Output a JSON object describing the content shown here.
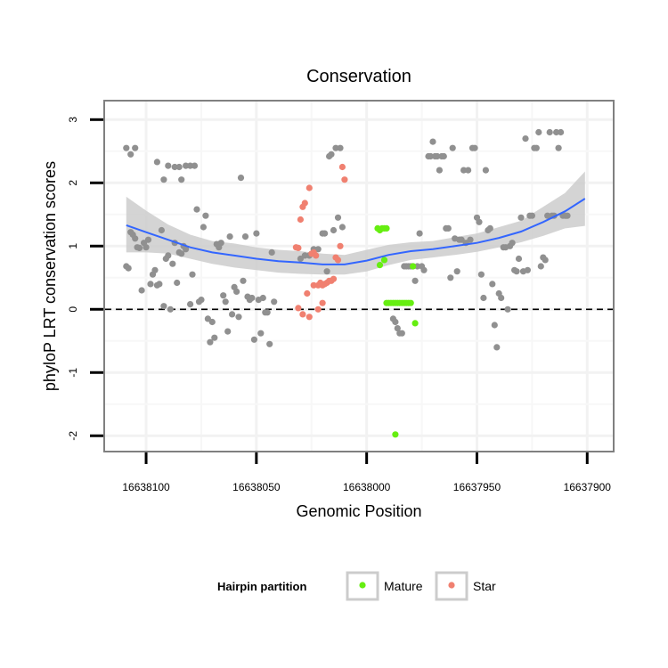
{
  "chart_data": {
    "type": "scatter",
    "title": "Conservation",
    "xlabel": "Genomic Position",
    "ylabel": "phyloP LRT conservation scores",
    "x_reversed": true,
    "xlim": [
      16638119,
      16637888
    ],
    "ylim": [
      -2.25,
      3.3
    ],
    "xticks": [
      16638100,
      16638050,
      16638000,
      16637950,
      16637900
    ],
    "xtick_labels": [
      "16638100",
      "16638050",
      "16638000",
      "16637950",
      "16637900"
    ],
    "yticks": [
      -2,
      -1,
      0,
      1,
      2,
      3
    ],
    "ytick_labels": [
      "-2",
      "-1",
      "0",
      "1",
      "2",
      "3"
    ],
    "grid": true,
    "reference_line": {
      "y": 0,
      "style": "dashed"
    },
    "legend": {
      "title": "Hairpin partition",
      "position": "bottom",
      "entries": [
        {
          "label": "Mature",
          "color": "#66ee11"
        },
        {
          "label": "Star",
          "color": "#f08070"
        }
      ]
    },
    "colors": {
      "other": "#909090",
      "smooth": "#3366ff",
      "band": "#cccccc"
    },
    "series": [
      {
        "name": "",
        "role": "other",
        "points": [
          [
            16638109,
            2.55
          ],
          [
            16638107,
            2.45
          ],
          [
            16638105,
            2.55
          ],
          [
            16638095,
            2.33
          ],
          [
            16638092,
            2.05
          ],
          [
            16638090,
            2.27
          ],
          [
            16638087,
            2.25
          ],
          [
            16638085,
            2.25
          ],
          [
            16638084,
            2.05
          ],
          [
            16638082,
            2.27
          ],
          [
            16638080,
            2.27
          ],
          [
            16638078,
            2.27
          ],
          [
            16638109,
            0.68
          ],
          [
            16638108,
            0.65
          ],
          [
            16638107,
            1.22
          ],
          [
            16638106,
            1.18
          ],
          [
            16638105,
            1.12
          ],
          [
            16638104,
            0.98
          ],
          [
            16638103,
            0.97
          ],
          [
            16638102,
            0.3
          ],
          [
            16638101,
            1.05
          ],
          [
            16638100,
            0.98
          ],
          [
            16638099,
            1.1
          ],
          [
            16638098,
            0.4
          ],
          [
            16638097,
            0.55
          ],
          [
            16638096,
            0.62
          ],
          [
            16638095,
            0.38
          ],
          [
            16638094,
            0.4
          ],
          [
            16638093,
            1.25
          ],
          [
            16638092,
            0.05
          ],
          [
            16638091,
            0.8
          ],
          [
            16638090,
            0.85
          ],
          [
            16638089,
            0.0
          ],
          [
            16638088,
            0.72
          ],
          [
            16638087,
            1.05
          ],
          [
            16638086,
            0.42
          ],
          [
            16638085,
            0.9
          ],
          [
            16638084,
            0.88
          ],
          [
            16638083,
            1.0
          ],
          [
            16638082,
            0.95
          ],
          [
            16638080,
            0.08
          ],
          [
            16638079,
            0.55
          ],
          [
            16638077,
            1.58
          ],
          [
            16638076,
            0.12
          ],
          [
            16638075,
            0.15
          ],
          [
            16638074,
            1.3
          ],
          [
            16638073,
            1.48
          ],
          [
            16638072,
            -0.15
          ],
          [
            16638071,
            -0.52
          ],
          [
            16638070,
            -0.2
          ],
          [
            16638069,
            -0.45
          ],
          [
            16638068,
            1.03
          ],
          [
            16638067,
            0.98
          ],
          [
            16638066,
            1.05
          ],
          [
            16638065,
            0.22
          ],
          [
            16638064,
            0.12
          ],
          [
            16638063,
            -0.35
          ],
          [
            16638062,
            1.15
          ],
          [
            16638061,
            -0.08
          ],
          [
            16638060,
            0.35
          ],
          [
            16638059,
            0.28
          ],
          [
            16638058,
            -0.12
          ],
          [
            16638057,
            2.08
          ],
          [
            16638056,
            0.45
          ],
          [
            16638055,
            1.15
          ],
          [
            16638054,
            0.2
          ],
          [
            16638053,
            0.15
          ],
          [
            16638052,
            0.18
          ],
          [
            16638051,
            -0.48
          ],
          [
            16638050,
            1.2
          ],
          [
            16638049,
            0.15
          ],
          [
            16638048,
            -0.38
          ],
          [
            16638047,
            0.18
          ],
          [
            16638046,
            -0.05
          ],
          [
            16638045,
            -0.05
          ],
          [
            16638044,
            -0.55
          ],
          [
            16638043,
            0.9
          ],
          [
            16638042,
            0.12
          ],
          [
            16638030,
            0.8
          ],
          [
            16638028,
            0.85
          ],
          [
            16638026,
            0.85
          ],
          [
            16638024,
            0.95
          ],
          [
            16638022,
            0.95
          ],
          [
            16638020,
            1.2
          ],
          [
            16638019,
            1.2
          ],
          [
            16638018,
            0.6
          ],
          [
            16638017,
            2.42
          ],
          [
            16638016,
            2.45
          ],
          [
            16638015,
            1.25
          ],
          [
            16638014,
            2.55
          ],
          [
            16638013,
            1.45
          ],
          [
            16638012,
            2.55
          ],
          [
            16638011,
            1.3
          ],
          [
            16637988,
            -0.15
          ],
          [
            16637987,
            -0.2
          ],
          [
            16637986,
            -0.3
          ],
          [
            16637985,
            -0.38
          ],
          [
            16637984,
            -0.38
          ],
          [
            16637983,
            0.68
          ],
          [
            16637982,
            0.68
          ],
          [
            16637981,
            0.68
          ],
          [
            16637980,
            0.68
          ],
          [
            16637979,
            0.68
          ],
          [
            16637978,
            0.45
          ],
          [
            16637977,
            0.68
          ],
          [
            16637976,
            1.2
          ],
          [
            16637975,
            0.68
          ],
          [
            16637974,
            0.62
          ],
          [
            16637972,
            2.42
          ],
          [
            16637971,
            2.42
          ],
          [
            16637970,
            2.65
          ],
          [
            16637969,
            2.42
          ],
          [
            16637968,
            2.42
          ],
          [
            16637967,
            2.2
          ],
          [
            16637966,
            2.42
          ],
          [
            16637965,
            2.42
          ],
          [
            16637964,
            1.28
          ],
          [
            16637963,
            1.28
          ],
          [
            16637962,
            0.5
          ],
          [
            16637961,
            2.55
          ],
          [
            16637960,
            1.12
          ],
          [
            16637959,
            0.6
          ],
          [
            16637958,
            1.1
          ],
          [
            16637957,
            1.1
          ],
          [
            16637956,
            2.2
          ],
          [
            16637955,
            1.05
          ],
          [
            16637954,
            2.2
          ],
          [
            16637953,
            1.1
          ],
          [
            16637952,
            2.55
          ],
          [
            16637951,
            2.55
          ],
          [
            16637950,
            1.45
          ],
          [
            16637949,
            1.38
          ],
          [
            16637948,
            0.55
          ],
          [
            16637947,
            0.18
          ],
          [
            16637946,
            2.2
          ],
          [
            16637945,
            1.25
          ],
          [
            16637944,
            1.28
          ],
          [
            16637943,
            0.4
          ],
          [
            16637942,
            -0.25
          ],
          [
            16637941,
            -0.6
          ],
          [
            16637940,
            0.25
          ],
          [
            16637939,
            0.18
          ],
          [
            16637938,
            0.98
          ],
          [
            16637937,
            0.98
          ],
          [
            16637936,
            0.0
          ],
          [
            16637935,
            1.0
          ],
          [
            16637934,
            1.05
          ],
          [
            16637933,
            0.62
          ],
          [
            16637932,
            0.6
          ],
          [
            16637931,
            0.8
          ],
          [
            16637930,
            1.45
          ],
          [
            16637929,
            0.6
          ],
          [
            16637928,
            2.7
          ],
          [
            16637927,
            0.62
          ],
          [
            16637926,
            1.48
          ],
          [
            16637925,
            1.48
          ],
          [
            16637924,
            2.55
          ],
          [
            16637923,
            2.55
          ],
          [
            16637922,
            2.8
          ],
          [
            16637921,
            0.68
          ],
          [
            16637920,
            0.82
          ],
          [
            16637919,
            0.78
          ],
          [
            16637918,
            1.48
          ],
          [
            16637917,
            2.8
          ],
          [
            16637916,
            1.48
          ],
          [
            16637915,
            1.48
          ],
          [
            16637914,
            2.8
          ],
          [
            16637913,
            2.55
          ],
          [
            16637912,
            2.8
          ],
          [
            16637911,
            1.48
          ],
          [
            16637910,
            1.48
          ],
          [
            16637909,
            1.48
          ]
        ]
      },
      {
        "name": "Star",
        "role": "star",
        "points": [
          [
            16638032,
            0.98
          ],
          [
            16638031,
            0.97
          ],
          [
            16638030,
            1.42
          ],
          [
            16638029,
            1.62
          ],
          [
            16638028,
            1.68
          ],
          [
            16638026,
            1.92
          ],
          [
            16638025,
            0.88
          ],
          [
            16638024,
            0.9
          ],
          [
            16638023,
            0.85
          ],
          [
            16638022,
            0.38
          ],
          [
            16638021,
            0.42
          ],
          [
            16638020,
            0.38
          ],
          [
            16638019,
            0.4
          ],
          [
            16638018,
            0.42
          ],
          [
            16638017,
            0.45
          ],
          [
            16638016,
            0.45
          ],
          [
            16638015,
            0.48
          ],
          [
            16638014,
            0.82
          ],
          [
            16638013,
            0.78
          ],
          [
            16638012,
            1.0
          ],
          [
            16638011,
            2.25
          ],
          [
            16638010,
            2.05
          ],
          [
            16638031,
            0.02
          ],
          [
            16638029,
            -0.08
          ],
          [
            16638027,
            0.25
          ],
          [
            16638026,
            -0.12
          ],
          [
            16638024,
            0.38
          ],
          [
            16638022,
            0.0
          ],
          [
            16638020,
            0.1
          ]
        ]
      },
      {
        "name": "Mature",
        "role": "mature",
        "points": [
          [
            16637995,
            1.28
          ],
          [
            16637994,
            1.25
          ],
          [
            16637993,
            1.28
          ],
          [
            16637992,
            1.28
          ],
          [
            16637991,
            1.28
          ],
          [
            16637994,
            0.7
          ],
          [
            16637992,
            0.78
          ],
          [
            16637991,
            0.1
          ],
          [
            16637990,
            0.1
          ],
          [
            16637989,
            0.1
          ],
          [
            16637988,
            0.1
          ],
          [
            16637987,
            0.1
          ],
          [
            16637986,
            0.1
          ],
          [
            16637985,
            0.1
          ],
          [
            16637984,
            0.1
          ],
          [
            16637983,
            0.1
          ],
          [
            16637982,
            0.1
          ],
          [
            16637981,
            0.1
          ],
          [
            16637980,
            0.1
          ],
          [
            16637979,
            0.68
          ],
          [
            16637978,
            -0.22
          ],
          [
            16637987,
            -1.98
          ]
        ]
      }
    ],
    "smooth": {
      "x": [
        16638109,
        16638100,
        16638090,
        16638080,
        16638070,
        16638060,
        16638050,
        16638040,
        16638030,
        16638020,
        16638010,
        16638000,
        16637990,
        16637980,
        16637970,
        16637960,
        16637950,
        16637940,
        16637930,
        16637920,
        16637910,
        16637901
      ],
      "y": [
        1.33,
        1.22,
        1.1,
        0.98,
        0.9,
        0.85,
        0.8,
        0.76,
        0.74,
        0.71,
        0.71,
        0.77,
        0.86,
        0.92,
        0.95,
        1.0,
        1.05,
        1.13,
        1.23,
        1.38,
        1.55,
        1.75
      ],
      "lower": [
        0.9,
        0.9,
        0.88,
        0.8,
        0.72,
        0.66,
        0.62,
        0.58,
        0.56,
        0.55,
        0.55,
        0.6,
        0.7,
        0.78,
        0.82,
        0.86,
        0.91,
        0.98,
        1.06,
        1.16,
        1.28,
        1.32
      ],
      "upper": [
        1.78,
        1.56,
        1.34,
        1.18,
        1.08,
        1.04,
        0.98,
        0.94,
        0.92,
        0.88,
        0.86,
        0.94,
        1.02,
        1.06,
        1.08,
        1.14,
        1.2,
        1.3,
        1.4,
        1.62,
        1.84,
        2.18
      ]
    }
  }
}
